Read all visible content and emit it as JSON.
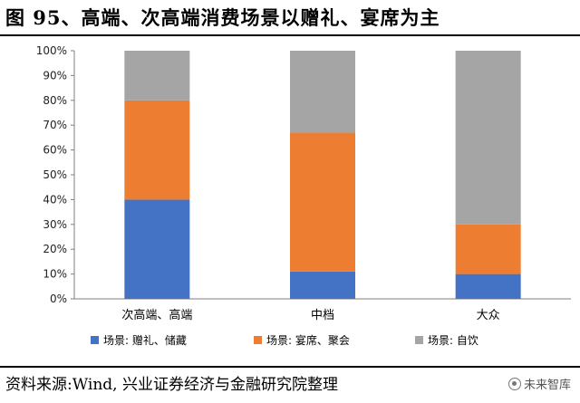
{
  "title": "图 95、高端、次高端消费场景以赠礼、宴席为主",
  "source": "资料来源:Wind, 兴业证券经济与金融研究院整理",
  "watermark": "未来智库",
  "chart_data": {
    "type": "bar",
    "stacked": true,
    "title": "",
    "xlabel": "",
    "ylabel": "",
    "ylim": [
      0,
      100
    ],
    "y_ticks": [
      "0%",
      "10%",
      "20%",
      "30%",
      "40%",
      "50%",
      "60%",
      "70%",
      "80%",
      "90%",
      "100%"
    ],
    "categories": [
      "次高端、高端",
      "中档",
      "大众"
    ],
    "series": [
      {
        "name": "场景: 赠礼、储藏",
        "color": "#4472C4",
        "values": [
          40,
          11,
          10
        ]
      },
      {
        "name": "场景: 宴席、聚会",
        "color": "#ED7D31",
        "values": [
          40,
          56,
          20
        ]
      },
      {
        "name": "场景: 自饮",
        "color": "#A5A5A5",
        "values": [
          20,
          33,
          70
        ]
      }
    ],
    "grid": false,
    "legend": "bottom"
  }
}
